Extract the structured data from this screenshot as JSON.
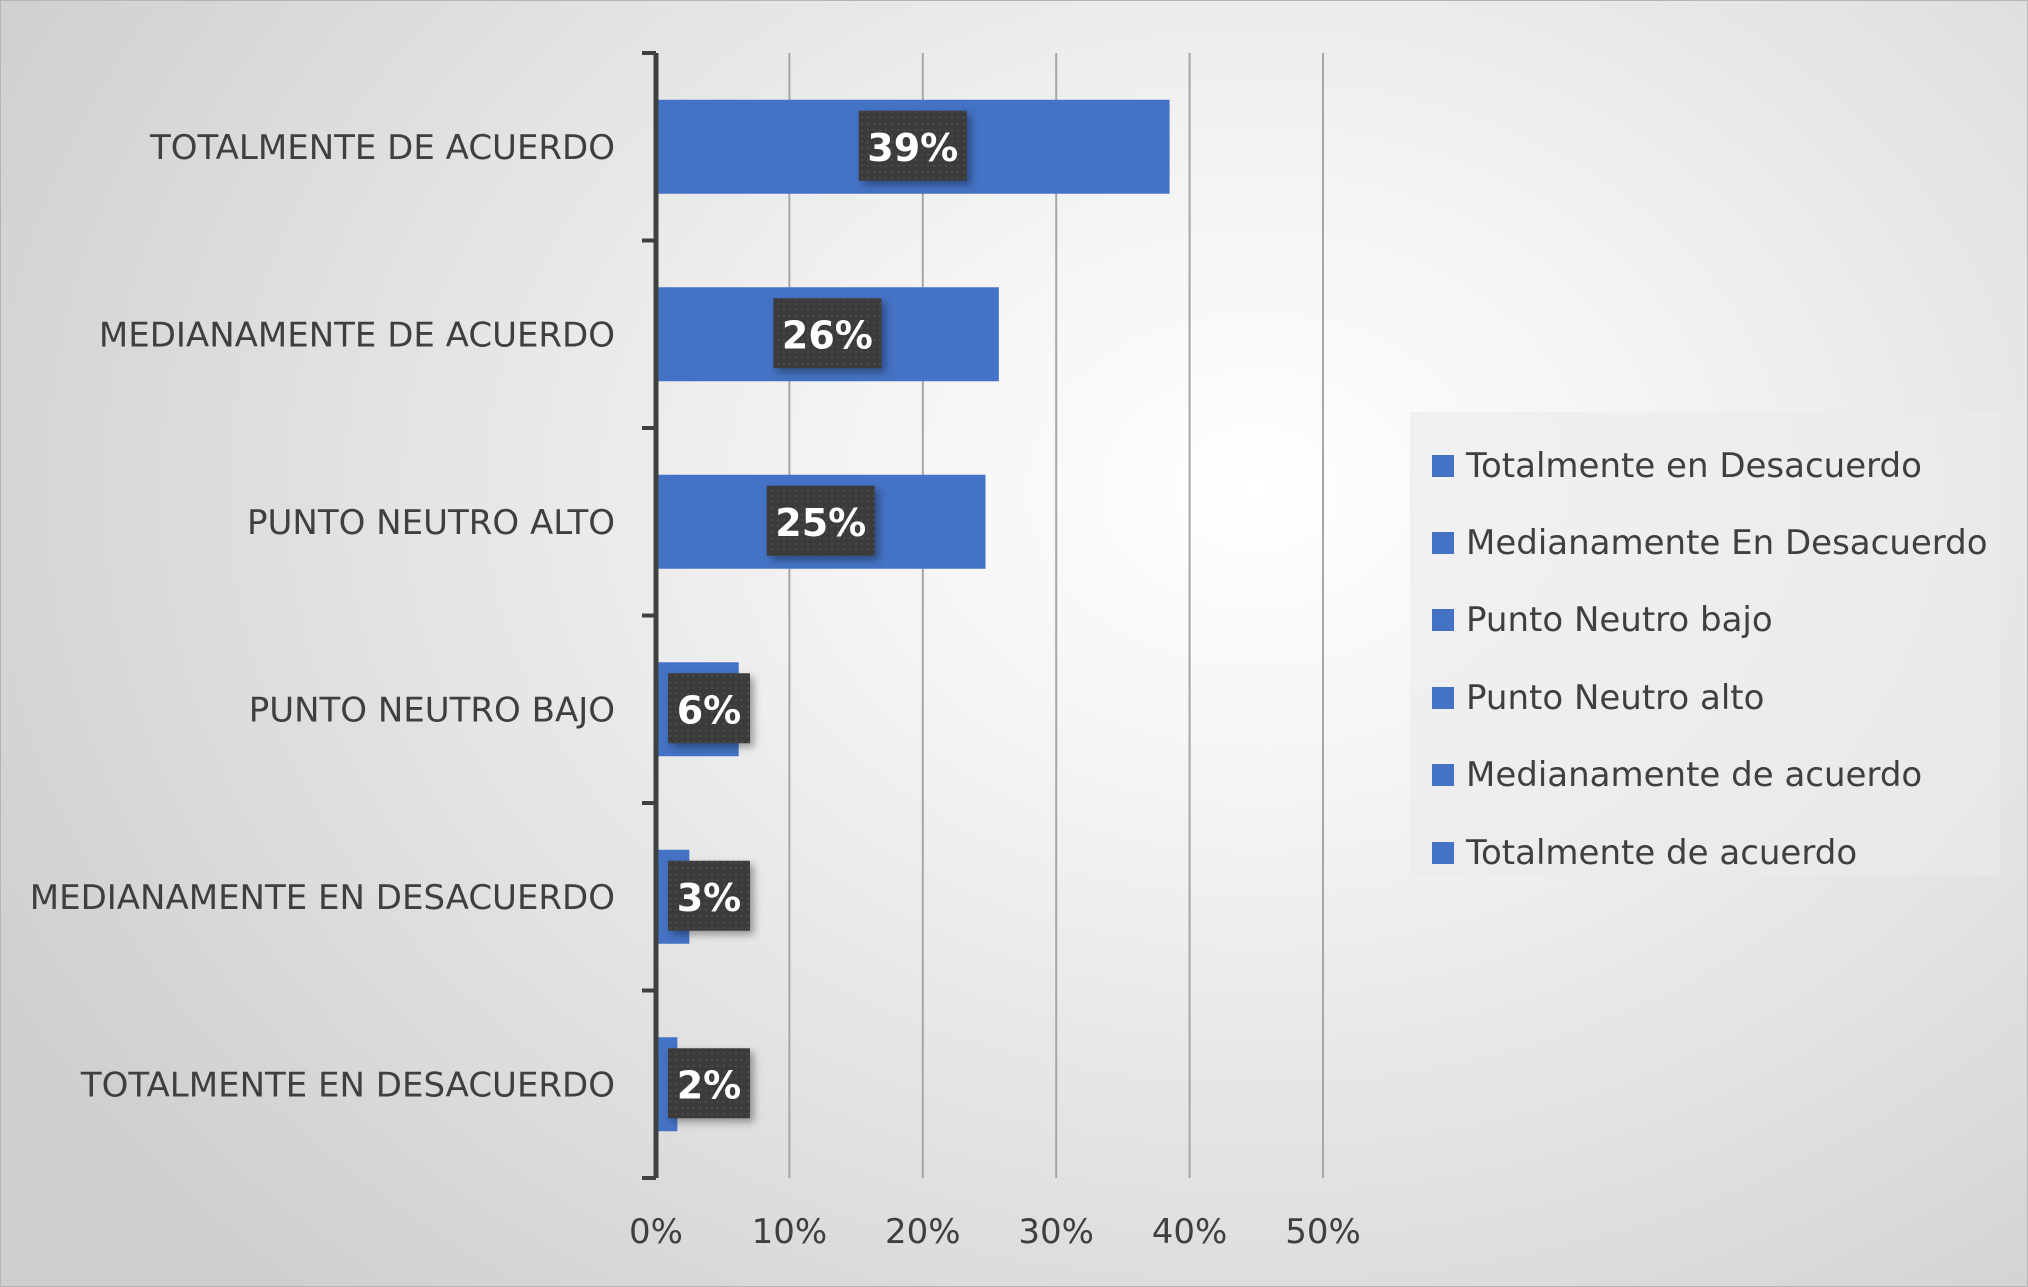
{
  "chart_data": {
    "type": "bar",
    "orientation": "horizontal",
    "categories": [
      "TOTALMENTE DE  ACUERDO",
      "MEDIANAMENTE DE ACUERDO",
      "PUNTO NEUTRO ALTO",
      "PUNTO NEUTRO BAJO",
      "MEDIANAMENTE EN DESACUERDO",
      "TOTALMENTE EN DESACUERDO"
    ],
    "values": [
      0.385,
      0.257,
      0.247,
      0.062,
      0.025,
      0.016
    ],
    "data_labels": [
      "39%",
      "26%",
      "25%",
      "6%",
      "3%",
      "2%"
    ],
    "xlim": [
      0,
      0.5
    ],
    "x_ticks": [
      "0%",
      "10%",
      "20%",
      "30%",
      "40%",
      "50%"
    ],
    "grid": "vertical",
    "legend": {
      "placement": "right",
      "entries": [
        "Totalmente en Desacuerdo",
        "Medianamente En Desacuerdo",
        "Punto Neutro bajo",
        "Punto Neutro alto",
        "Medianamente de acuerdo",
        "Totalmente de  acuerdo"
      ]
    },
    "colors": {
      "bar": "#4472C4",
      "label_box": "#3a3a3a",
      "gridline": "#a6a6a6",
      "axis": "#404040"
    }
  }
}
